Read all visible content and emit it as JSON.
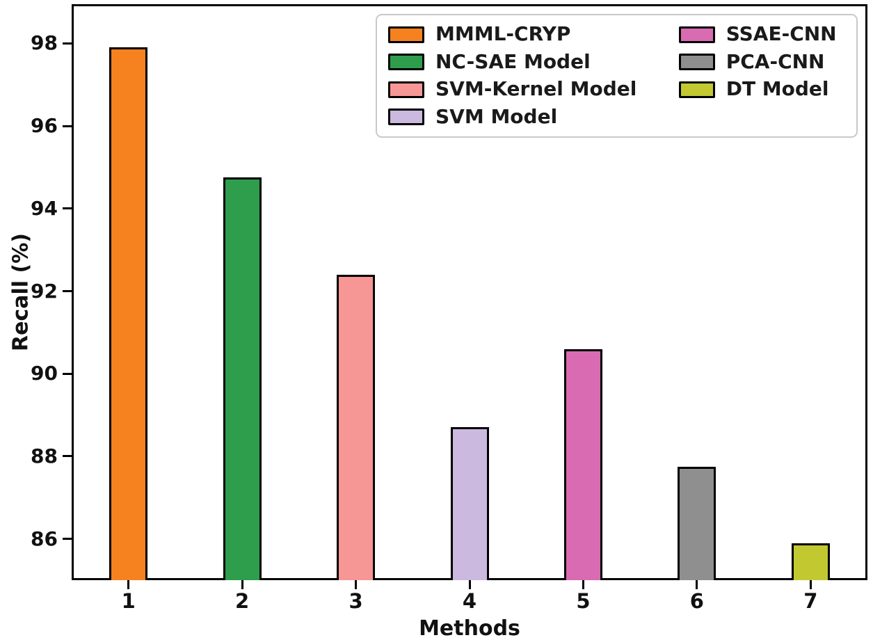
{
  "chart_data": {
    "type": "bar",
    "title": "",
    "xlabel": "Methods",
    "ylabel": "Recall (%)",
    "ylim": [
      85,
      98.95
    ],
    "yticks": [
      86,
      88,
      90,
      92,
      94,
      96,
      98
    ],
    "grid": false,
    "bars": [
      {
        "category": "1",
        "label": "MMML-CRYP",
        "value": 97.9,
        "color": "#F5821F"
      },
      {
        "category": "2",
        "label": "NC-SAE Model",
        "value": 94.75,
        "color": "#2E9E4C"
      },
      {
        "category": "3",
        "label": "SVM-Kernel Model",
        "value": 92.4,
        "color": "#F69795"
      },
      {
        "category": "4",
        "label": "SVM Model",
        "value": 88.7,
        "color": "#CBB9DF"
      },
      {
        "category": "5",
        "label": "SSAE-CNN",
        "value": 90.6,
        "color": "#D96BB3"
      },
      {
        "category": "6",
        "label": "PCA-CNN",
        "value": 87.75,
        "color": "#8F8F8F"
      },
      {
        "category": "7",
        "label": "DT Model",
        "value": 85.9,
        "color": "#C2C930"
      }
    ],
    "legend": {
      "position": "upper-right",
      "columns": 2,
      "order": "column-major",
      "entries": [
        "MMML-CRYP",
        "NC-SAE Model",
        "SVM-Kernel Model",
        "SVM Model",
        "SSAE-CNN",
        "PCA-CNN",
        "DT Model"
      ]
    },
    "colors": {
      "bar_edge": "#000000",
      "axis": "#000000",
      "text": "#111111",
      "legend_border": "#C9C9C9",
      "background": "#FFFFFF"
    }
  }
}
